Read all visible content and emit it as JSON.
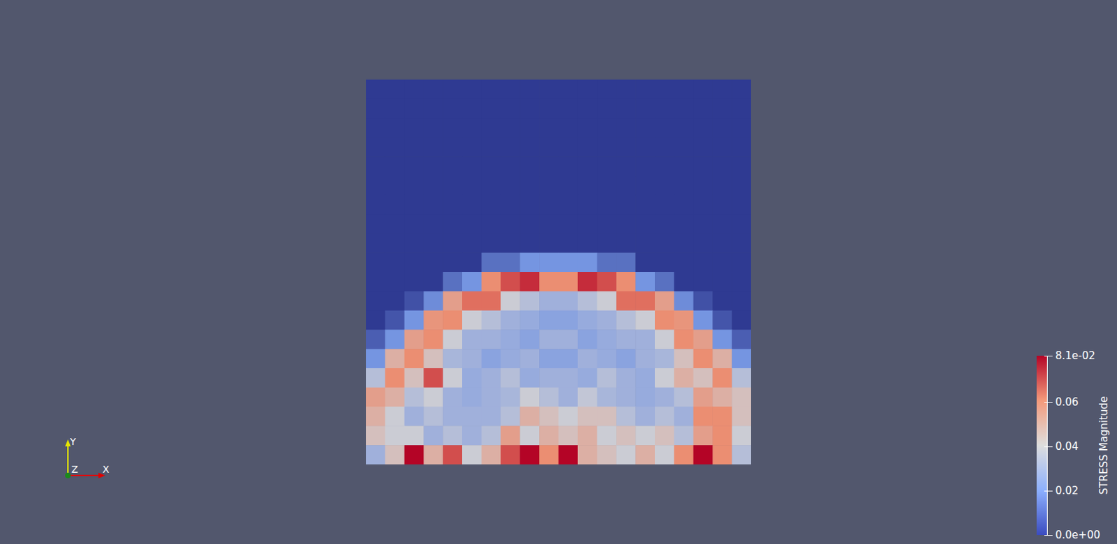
{
  "chart_data": {
    "type": "heatmap",
    "tick_labels": false,
    "cells": [
      [
        0,
        0,
        0,
        0,
        0,
        0,
        0,
        0,
        0,
        0,
        0,
        0,
        0,
        0,
        0,
        0,
        0,
        0,
        0,
        0
      ],
      [
        0,
        0,
        0,
        0,
        0,
        0,
        0,
        0,
        0,
        0,
        0,
        0,
        0,
        0,
        0,
        0,
        0,
        0,
        0,
        0
      ],
      [
        0,
        0,
        0,
        0,
        0,
        0,
        0,
        0,
        0,
        0,
        0,
        0,
        0,
        0,
        0,
        0,
        0,
        0,
        0,
        0
      ],
      [
        0,
        0,
        0,
        0,
        0,
        0,
        0,
        0,
        0,
        0,
        0,
        0,
        0,
        0,
        0,
        0,
        0,
        0,
        0,
        0
      ],
      [
        0,
        0,
        0,
        0,
        0,
        0,
        0,
        0,
        0,
        0,
        0,
        0,
        0,
        0,
        0,
        0,
        0,
        0,
        0,
        0
      ],
      [
        0,
        0,
        0,
        0,
        0,
        0,
        0,
        0,
        0,
        0,
        0,
        0,
        0,
        0,
        0,
        0,
        0,
        0,
        0,
        0
      ],
      [
        0,
        0,
        0,
        0,
        0,
        0,
        0,
        0,
        0,
        0,
        0,
        0,
        0,
        0,
        0,
        0,
        0,
        0,
        0,
        0
      ],
      [
        0,
        0,
        0,
        0,
        0,
        0,
        0,
        0,
        0,
        0,
        0,
        0,
        0,
        0,
        0,
        0,
        0,
        0,
        0,
        0
      ],
      [
        0,
        0,
        0,
        0,
        0,
        0,
        0,
        0,
        0,
        0,
        0,
        0,
        0,
        0,
        0,
        0,
        0,
        0,
        0,
        0
      ],
      [
        0,
        0,
        0,
        0,
        0,
        0,
        0.012,
        0.012,
        0.02,
        0.02,
        0.02,
        0.02,
        0.012,
        0.012,
        0,
        0,
        0,
        0,
        0,
        0
      ],
      [
        0,
        0,
        0,
        0,
        0.012,
        0.02,
        0.06,
        0.07,
        0.075,
        0.06,
        0.06,
        0.075,
        0.07,
        0.06,
        0.02,
        0.012,
        0,
        0,
        0,
        0
      ],
      [
        0,
        0,
        0.005,
        0.018,
        0.055,
        0.065,
        0.065,
        0.04,
        0.035,
        0.03,
        0.03,
        0.035,
        0.04,
        0.065,
        0.065,
        0.055,
        0.018,
        0.005,
        0,
        0
      ],
      [
        0,
        0.006,
        0.02,
        0.058,
        0.06,
        0.04,
        0.035,
        0.03,
        0.028,
        0.025,
        0.025,
        0.028,
        0.03,
        0.035,
        0.04,
        0.06,
        0.058,
        0.02,
        0.006,
        0
      ],
      [
        0.008,
        0.02,
        0.055,
        0.06,
        0.04,
        0.03,
        0.03,
        0.028,
        0.025,
        0.03,
        0.03,
        0.025,
        0.028,
        0.03,
        0.03,
        0.04,
        0.06,
        0.055,
        0.02,
        0.008
      ],
      [
        0.02,
        0.05,
        0.06,
        0.045,
        0.032,
        0.03,
        0.025,
        0.028,
        0.03,
        0.025,
        0.025,
        0.03,
        0.028,
        0.025,
        0.03,
        0.032,
        0.045,
        0.06,
        0.05,
        0.02
      ],
      [
        0.035,
        0.06,
        0.045,
        0.07,
        0.04,
        0.028,
        0.03,
        0.035,
        0.028,
        0.03,
        0.03,
        0.028,
        0.035,
        0.03,
        0.028,
        0.04,
        0.05,
        0.045,
        0.06,
        0.035
      ],
      [
        0.055,
        0.05,
        0.035,
        0.04,
        0.03,
        0.028,
        0.03,
        0.032,
        0.04,
        0.035,
        0.03,
        0.038,
        0.032,
        0.03,
        0.028,
        0.03,
        0.035,
        0.055,
        0.05,
        0.045
      ],
      [
        0.05,
        0.04,
        0.03,
        0.035,
        0.03,
        0.03,
        0.03,
        0.035,
        0.05,
        0.045,
        0.04,
        0.045,
        0.045,
        0.035,
        0.03,
        0.035,
        0.03,
        0.06,
        0.06,
        0.045
      ],
      [
        0.045,
        0.04,
        0.04,
        0.03,
        0.035,
        0.03,
        0.035,
        0.055,
        0.04,
        0.05,
        0.045,
        0.05,
        0.04,
        0.045,
        0.04,
        0.045,
        0.035,
        0.055,
        0.06,
        0.04
      ],
      [
        0.03,
        0.045,
        0.081,
        0.05,
        0.07,
        0.04,
        0.05,
        0.07,
        0.081,
        0.06,
        0.081,
        0.05,
        0.045,
        0.04,
        0.05,
        0.04,
        0.06,
        0.081,
        0.06,
        0.035
      ]
    ],
    "colorbar": {
      "title": "STRESS Magnitude",
      "range": [
        0,
        0.081
      ],
      "ticks": [
        {
          "value": 0,
          "label": "0.0e+00"
        },
        0.02,
        0.04,
        0.06,
        {
          "value": 0.081,
          "label": "8.1e-02"
        }
      ]
    },
    "axes_triad": {
      "x": "X",
      "y": "Y",
      "z": "Z"
    }
  }
}
